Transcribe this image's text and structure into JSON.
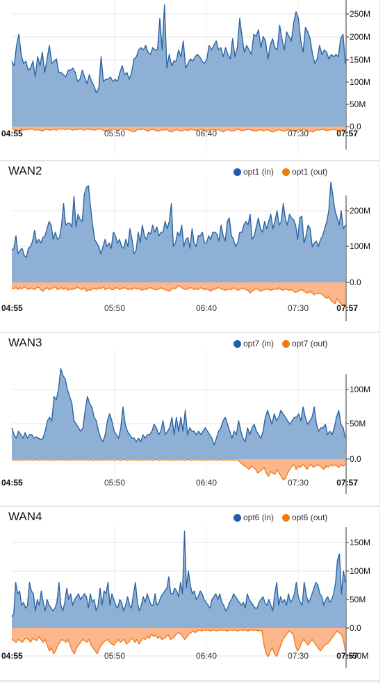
{
  "colors": {
    "in_stroke": "#2b64a3",
    "in_fill": "#8eb0d4",
    "out_stroke": "#ef7a1f",
    "out_fill": "#fdb58a",
    "legend_in": "#1f5fa8",
    "legend_out": "#f07a12"
  },
  "x_ticks": [
    "04:55",
    "05:50",
    "06:40",
    "07:30",
    "07:57"
  ],
  "chart_data": [
    {
      "type": "area",
      "title": "",
      "legend": [],
      "y_ticks": [
        "250M",
        "200M",
        "150M",
        "100M",
        "50M",
        "0.0"
      ],
      "ylim": [
        -25,
        275
      ],
      "in": [
        145,
        135,
        180,
        205,
        160,
        140,
        145,
        125,
        130,
        145,
        110,
        155,
        135,
        165,
        120,
        150,
        180,
        140,
        145,
        150,
        120,
        120,
        115,
        110,
        125,
        125,
        130,
        120,
        100,
        105,
        125,
        110,
        95,
        115,
        100,
        90,
        75,
        85,
        155,
        100,
        105,
        105,
        110,
        100,
        105,
        100,
        120,
        135,
        115,
        120,
        105,
        120,
        150,
        155,
        170,
        175,
        170,
        180,
        165,
        160,
        175,
        170,
        170,
        240,
        170,
        270,
        130,
        160,
        135,
        145,
        145,
        170,
        155,
        190,
        130,
        140,
        150,
        145,
        155,
        160,
        155,
        145,
        140,
        150,
        180,
        170,
        180,
        190,
        170,
        175,
        155,
        175,
        160,
        150,
        195,
        155,
        175,
        240,
        200,
        165,
        180,
        170,
        160,
        205,
        200,
        215,
        175,
        200,
        190,
        150,
        180,
        195,
        175,
        170,
        225,
        195,
        170,
        210,
        200,
        190,
        230,
        255,
        240,
        190,
        165,
        220,
        210,
        195,
        160,
        140,
        150,
        180,
        160,
        170,
        165,
        150,
        160,
        155,
        160,
        155,
        195,
        205,
        140
      ],
      "out": [
        -5,
        -6,
        -8,
        -10,
        -5,
        -8,
        -6,
        -7,
        -5,
        -6,
        -8,
        -7,
        -8,
        -10,
        -7,
        -6,
        -8,
        -7,
        -6,
        -8,
        -5,
        -6,
        -5,
        -7,
        -5,
        -6,
        -8,
        -6,
        -7,
        -5,
        -6,
        -8,
        -5,
        -7,
        -6,
        -8,
        -7,
        -5,
        -6,
        -8,
        -10,
        -8,
        -6,
        -5,
        -7,
        -8,
        -6,
        -5,
        -7,
        -6,
        -8,
        -10,
        -12,
        -8,
        -6,
        -7,
        -5,
        -8,
        -10,
        -7,
        -6,
        -8,
        -10,
        -9,
        -7,
        -8,
        -6,
        -10,
        -12,
        -9,
        -7,
        -8,
        -10,
        -8,
        -7,
        -9,
        -6,
        -7,
        -8,
        -9,
        -7,
        -6,
        -8,
        -10,
        -8,
        -7,
        -6,
        -8,
        -7,
        -9,
        -12,
        -8,
        -7,
        -9,
        -10,
        -8,
        -6,
        -7,
        -9,
        -8,
        -7,
        -6,
        -8,
        -9,
        -10,
        -8,
        -7,
        -9,
        -8,
        -7,
        -10,
        -12,
        -10,
        -8,
        -7,
        -9,
        -10,
        -8,
        -7,
        -8,
        -9,
        -10,
        -7,
        -8,
        -6,
        -7,
        -9,
        -10,
        -12,
        -9,
        -7,
        -8,
        -6,
        -7,
        -9,
        -8,
        -7,
        -6,
        -8,
        -9,
        -8,
        -7,
        -9
      ]
    },
    {
      "type": "area",
      "title": "WAN2",
      "legend": [
        {
          "name": "opt1 (in)",
          "color": "#1f5fa8"
        },
        {
          "name": "opt1 (out)",
          "color": "#f07a12"
        }
      ],
      "y_ticks": [
        "200M",
        "100M",
        "0.0"
      ],
      "ylim": [
        -70,
        290
      ],
      "in": [
        90,
        95,
        130,
        80,
        90,
        95,
        75,
        70,
        95,
        100,
        115,
        145,
        110,
        120,
        110,
        125,
        130,
        150,
        170,
        160,
        120,
        140,
        120,
        125,
        160,
        220,
        160,
        165,
        165,
        155,
        240,
        155,
        190,
        175,
        170,
        245,
        265,
        270,
        210,
        160,
        120,
        110,
        100,
        80,
        100,
        120,
        100,
        110,
        95,
        140,
        130,
        110,
        120,
        100,
        95,
        120,
        100,
        150,
        120,
        80,
        90,
        140,
        110,
        160,
        130,
        120,
        140,
        135,
        160,
        140,
        155,
        130,
        140,
        140,
        170,
        150,
        170,
        220,
        100,
        110,
        140,
        130,
        160,
        100,
        120,
        125,
        95,
        150,
        110,
        100,
        130,
        130,
        140,
        110,
        110,
        130,
        120,
        140,
        140,
        135,
        115,
        160,
        130,
        115,
        170,
        180,
        130,
        120,
        100,
        110,
        140,
        140,
        160,
        170,
        160,
        190,
        120,
        130,
        155,
        180,
        150,
        140,
        170,
        150,
        170,
        190,
        150,
        170,
        200,
        160,
        170,
        220,
        180,
        160,
        190,
        180,
        175,
        160,
        120,
        180,
        185,
        110,
        130,
        160,
        150,
        100,
        110,
        115,
        100,
        120,
        130,
        150,
        170,
        200,
        280,
        240,
        200,
        180,
        160,
        200,
        150,
        160
      ],
      "out": [
        -15,
        -18,
        -14,
        -20,
        -15,
        -18,
        -12,
        -16,
        -20,
        -15,
        -18,
        -20,
        -15,
        -14,
        -20,
        -25,
        -18,
        -15,
        -20,
        -18,
        -15,
        -12,
        -20,
        -18,
        -15,
        -20,
        -15,
        -22,
        -18,
        -20,
        -18,
        -16,
        -14,
        -18,
        -20,
        -15,
        -25,
        -20,
        -22,
        -18,
        -16,
        -20,
        -15,
        -18,
        -12,
        -20,
        -18,
        -15,
        -20,
        -20,
        -16,
        -15,
        -20,
        -18,
        -15,
        -16,
        -20,
        -18,
        -20,
        -15,
        -18,
        -16,
        -20,
        -22,
        -18,
        -20,
        -16,
        -15,
        -18,
        -20,
        -20,
        -18,
        -15,
        -18,
        -20,
        -22,
        -25,
        -20,
        -15,
        -18,
        -12,
        -10,
        -15,
        -18,
        -20,
        -18,
        -15,
        -16,
        -20,
        -18,
        -20,
        -15,
        -18,
        -20,
        -18,
        -20,
        -25,
        -18,
        -20,
        -16,
        -15,
        -18,
        -20,
        -22,
        -20,
        -18,
        -20,
        -15,
        -18,
        -22,
        -20,
        -16,
        -18,
        -20,
        -22,
        -30,
        -25,
        -20,
        -18,
        -20,
        -25,
        -22,
        -20,
        -18,
        -20,
        -22,
        -20,
        -18,
        -20,
        -15,
        -20,
        -22,
        -18,
        -20,
        -22,
        -20,
        -25,
        -28,
        -25,
        -22,
        -20,
        -25,
        -28,
        -30,
        -25,
        -30,
        -35,
        -30,
        -32,
        -30,
        -35,
        -40,
        -45,
        -40,
        -50,
        -55,
        -60,
        -45,
        -55,
        -60,
        -65,
        -60
      ]
    },
    {
      "type": "area",
      "title": "WAN3",
      "legend": [
        {
          "name": "opt7 (in)",
          "color": "#1f5fa8"
        },
        {
          "name": "opt7 (out)",
          "color": "#f07a12"
        }
      ],
      "y_ticks": [
        "100M",
        "50M",
        "0.0"
      ],
      "ylim": [
        -30,
        130
      ],
      "in": [
        45,
        35,
        30,
        40,
        35,
        30,
        38,
        30,
        35,
        35,
        30,
        32,
        30,
        28,
        30,
        40,
        55,
        60,
        55,
        90,
        85,
        100,
        130,
        120,
        115,
        100,
        90,
        80,
        55,
        50,
        45,
        40,
        45,
        70,
        90,
        80,
        75,
        60,
        55,
        40,
        30,
        25,
        35,
        55,
        65,
        55,
        40,
        35,
        30,
        45,
        75,
        50,
        40,
        35,
        30,
        30,
        25,
        30,
        25,
        35,
        30,
        35,
        35,
        40,
        50,
        45,
        35,
        40,
        55,
        35,
        40,
        45,
        60,
        35,
        60,
        40,
        60,
        40,
        70,
        35,
        45,
        40,
        40,
        35,
        40,
        35,
        40,
        45,
        40,
        35,
        30,
        20,
        30,
        40,
        45,
        55,
        60,
        50,
        40,
        30,
        40,
        35,
        55,
        40,
        30,
        25,
        45,
        35,
        45,
        50,
        40,
        35,
        30,
        40,
        60,
        70,
        60,
        50,
        65,
        55,
        60,
        70,
        65,
        60,
        55,
        50,
        55,
        60,
        60,
        65,
        55,
        75,
        60,
        50,
        55,
        60,
        75,
        50,
        40,
        45,
        45,
        50,
        35,
        40,
        35,
        45,
        60,
        70,
        50,
        45,
        30
      ],
      "out": [
        -1,
        -2,
        -1,
        -2,
        -1,
        -2,
        -1,
        -1,
        -2,
        -1,
        -2,
        -1,
        -1,
        -2,
        -1,
        -2,
        -1,
        -1,
        -2,
        -1,
        -2,
        -1,
        -1,
        -2,
        -1,
        -1,
        -2,
        -1,
        -2,
        -1,
        -1,
        -2,
        -1,
        -2,
        -1,
        -1,
        -2,
        -1,
        -2,
        -1,
        -1,
        -2,
        -1,
        -2,
        -1,
        -1,
        -2,
        -1,
        -2,
        -1,
        -1,
        -2,
        -1,
        -1,
        -2,
        -1,
        -2,
        -1,
        -1,
        -2,
        -1,
        -2,
        -1,
        -1,
        -2,
        -1,
        -2,
        -1,
        -1,
        -2,
        -1,
        -2,
        -1,
        -1,
        -2,
        -1,
        -2,
        -1,
        -1,
        -2,
        -1,
        -2,
        -1,
        -1,
        -2,
        -1,
        -2,
        -1,
        -1,
        -2,
        -1,
        -2,
        -1,
        -1,
        -2,
        -1,
        -2,
        -1,
        -1,
        -2,
        -1,
        -2,
        -1,
        -1,
        -2,
        -1,
        -2,
        -5,
        -8,
        -10,
        -12,
        -15,
        -10,
        -12,
        -15,
        -20,
        -18,
        -15,
        -12,
        -20,
        -25,
        -18,
        -20,
        -22,
        -15,
        -20,
        -25,
        -30,
        -28,
        -20,
        -15,
        -10,
        -8,
        -15,
        -10,
        -12,
        -8,
        -10,
        -15,
        -10,
        -8,
        -12,
        -10,
        -8,
        -10,
        -12,
        -15,
        -10,
        -12,
        -8,
        -10,
        -8,
        -10,
        -12,
        -8,
        -10,
        -8
      ]
    },
    {
      "type": "area",
      "title": "WAN4",
      "legend": [
        {
          "name": "opt6 (in)",
          "color": "#1f5fa8"
        },
        {
          "name": "opt6 (out)",
          "color": "#f07a12"
        }
      ],
      "y_ticks": [
        "150M",
        "100M",
        "50M",
        "0.0",
        "-50M"
      ],
      "ylim": [
        -60,
        175
      ],
      "in": [
        20,
        25,
        80,
        60,
        65,
        40,
        45,
        35,
        40,
        80,
        65,
        60,
        30,
        50,
        40,
        65,
        45,
        30,
        50,
        40,
        35,
        30,
        35,
        45,
        80,
        40,
        30,
        45,
        70,
        50,
        60,
        40,
        50,
        55,
        60,
        50,
        55,
        60,
        55,
        35,
        60,
        45,
        50,
        30,
        40,
        70,
        40,
        65,
        60,
        80,
        40,
        60,
        50,
        40,
        35,
        50,
        45,
        30,
        40,
        55,
        40,
        35,
        60,
        80,
        45,
        30,
        40,
        55,
        45,
        60,
        50,
        40,
        40,
        60,
        40,
        45,
        55,
        60,
        65,
        70,
        90,
        60,
        60,
        70,
        65,
        55,
        80,
        60,
        170,
        70,
        100,
        75,
        60,
        65,
        50,
        55,
        65,
        60,
        50,
        45,
        40,
        35,
        50,
        55,
        60,
        50,
        60,
        45,
        40,
        30,
        35,
        45,
        50,
        60,
        55,
        50,
        45,
        40,
        45,
        35,
        60,
        50,
        45,
        40,
        35,
        35,
        45,
        50,
        55,
        45,
        40,
        50,
        40,
        30,
        60,
        80,
        40,
        55,
        45,
        50,
        40,
        60,
        45,
        50,
        60,
        80,
        55,
        45,
        40,
        80,
        60,
        45,
        50,
        60,
        70,
        80,
        75,
        60,
        55,
        40,
        50,
        55,
        45,
        50,
        60,
        80,
        120,
        130,
        60,
        100,
        80
      ],
      "out": [
        -20,
        -22,
        -25,
        -20,
        -22,
        -25,
        -20,
        -18,
        -20,
        -25,
        -18,
        -20,
        -22,
        -15,
        -20,
        -25,
        -20,
        -30,
        -40,
        -35,
        -45,
        -40,
        -30,
        -25,
        -20,
        -22,
        -25,
        -20,
        -30,
        -40,
        -45,
        -35,
        -30,
        -25,
        -20,
        -22,
        -25,
        -20,
        -30,
        -35,
        -40,
        -45,
        -35,
        -30,
        -25,
        -22,
        -20,
        -25,
        -28,
        -30,
        -25,
        -20,
        -25,
        -22,
        -20,
        -28,
        -25,
        -20,
        -18,
        -25,
        -20,
        -28,
        -22,
        -18,
        -20,
        -15,
        -18,
        -10,
        -15,
        -12,
        -18,
        -15,
        -20,
        -18,
        -15,
        -12,
        -20,
        -18,
        -15,
        -10,
        -8,
        -10,
        -15,
        -20,
        -15,
        -10,
        -8,
        -5,
        -8,
        -5,
        -3,
        -5,
        -3,
        -4,
        -3,
        -5,
        -4,
        -3,
        -5,
        -4,
        -3,
        -4,
        -3,
        -5,
        -4,
        -3,
        -4,
        -3,
        -5,
        -4,
        -3,
        -4,
        -3,
        -5,
        -4,
        -3,
        -4,
        -3,
        -5,
        -4,
        -5,
        -30,
        -45,
        -50,
        -40,
        -35,
        -45,
        -50,
        -40,
        -30,
        -20,
        -15,
        -10,
        -5,
        -8,
        -10,
        -30,
        -40,
        -35,
        -25,
        -20,
        -25,
        -30,
        -25,
        -20,
        -25,
        -30,
        -35,
        -40,
        -35,
        -30,
        -28,
        -25,
        -20,
        -15,
        -10,
        -5,
        -8,
        -10,
        -20,
        -40
      ]
    }
  ]
}
